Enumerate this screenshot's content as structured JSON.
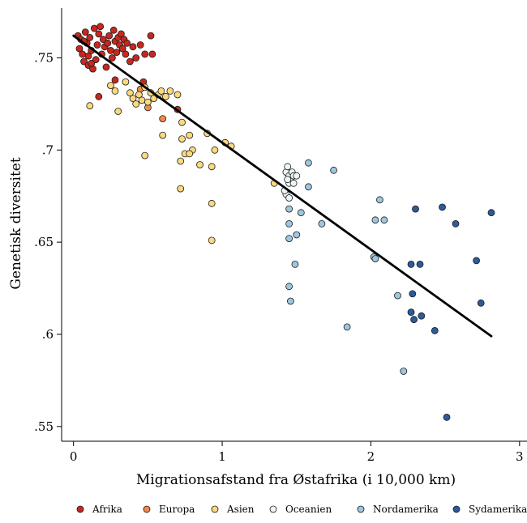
{
  "chart_data": {
    "type": "scatter",
    "title": "",
    "xlabel": "Migrationsafstand fra Østafrika (i 10,000 km)",
    "ylabel": "Genetisk diversitet",
    "xlim": [
      -0.08,
      3.05
    ],
    "ylim": [
      0.542,
      0.777
    ],
    "x_ticks": [
      0,
      1,
      2,
      3
    ],
    "x_tick_labels": [
      "0",
      "1",
      "2",
      "3"
    ],
    "y_ticks": [
      0.55,
      0.6,
      0.65,
      0.7,
      0.75
    ],
    "y_tick_labels": [
      ".55",
      ".6",
      ".65",
      ".7",
      ".75"
    ],
    "grid": false,
    "legend_position": "bottom",
    "series": [
      {
        "name": "Afrika",
        "color": "#c8271f",
        "points": [
          [
            0.03,
            0.762
          ],
          [
            0.04,
            0.755
          ],
          [
            0.05,
            0.76
          ],
          [
            0.06,
            0.752
          ],
          [
            0.07,
            0.748
          ],
          [
            0.08,
            0.764
          ],
          [
            0.09,
            0.758
          ],
          [
            0.1,
            0.746
          ],
          [
            0.11,
            0.761
          ],
          [
            0.12,
            0.754
          ],
          [
            0.13,
            0.744
          ],
          [
            0.14,
            0.766
          ],
          [
            0.15,
            0.749
          ],
          [
            0.16,
            0.757
          ],
          [
            0.17,
            0.763
          ],
          [
            0.18,
            0.767
          ],
          [
            0.19,
            0.752
          ],
          [
            0.2,
            0.76
          ],
          [
            0.21,
            0.756
          ],
          [
            0.22,
            0.745
          ],
          [
            0.23,
            0.758
          ],
          [
            0.24,
            0.762
          ],
          [
            0.25,
            0.754
          ],
          [
            0.26,
            0.75
          ],
          [
            0.27,
            0.765
          ],
          [
            0.28,
            0.759
          ],
          [
            0.29,
            0.753
          ],
          [
            0.3,
            0.761
          ],
          [
            0.31,
            0.757
          ],
          [
            0.32,
            0.763
          ],
          [
            0.33,
            0.755
          ],
          [
            0.34,
            0.76
          ],
          [
            0.35,
            0.752
          ],
          [
            0.36,
            0.758
          ],
          [
            0.38,
            0.748
          ],
          [
            0.4,
            0.756
          ],
          [
            0.42,
            0.75
          ],
          [
            0.45,
            0.757
          ],
          [
            0.48,
            0.752
          ],
          [
            0.52,
            0.762
          ],
          [
            0.53,
            0.752
          ],
          [
            0.1,
            0.751
          ],
          [
            0.12,
            0.747
          ],
          [
            0.07,
            0.759
          ],
          [
            0.17,
            0.729
          ],
          [
            0.28,
            0.738
          ],
          [
            0.47,
            0.737
          ],
          [
            0.7,
            0.722
          ]
        ]
      },
      {
        "name": "Europa",
        "color": "#ef8a4b",
        "points": [
          [
            0.5,
            0.723
          ],
          [
            0.6,
            0.717
          ],
          [
            0.45,
            0.733
          ]
        ]
      },
      {
        "name": "Asien",
        "color": "#fbd97e",
        "points": [
          [
            0.11,
            0.724
          ],
          [
            0.25,
            0.735
          ],
          [
            0.28,
            0.732
          ],
          [
            0.3,
            0.721
          ],
          [
            0.35,
            0.737
          ],
          [
            0.38,
            0.731
          ],
          [
            0.4,
            0.728
          ],
          [
            0.42,
            0.725
          ],
          [
            0.44,
            0.73
          ],
          [
            0.46,
            0.727
          ],
          [
            0.48,
            0.734
          ],
          [
            0.5,
            0.726
          ],
          [
            0.52,
            0.731
          ],
          [
            0.54,
            0.728
          ],
          [
            0.57,
            0.73
          ],
          [
            0.59,
            0.732
          ],
          [
            0.62,
            0.729
          ],
          [
            0.65,
            0.732
          ],
          [
            0.7,
            0.73
          ],
          [
            0.73,
            0.715
          ],
          [
            0.6,
            0.708
          ],
          [
            0.73,
            0.706
          ],
          [
            0.75,
            0.698
          ],
          [
            0.78,
            0.708
          ],
          [
            0.8,
            0.7
          ],
          [
            0.85,
            0.692
          ],
          [
            0.9,
            0.709
          ],
          [
            0.95,
            0.7
          ],
          [
            1.02,
            0.704
          ],
          [
            1.06,
            0.702
          ],
          [
            0.72,
            0.694
          ],
          [
            0.78,
            0.698
          ],
          [
            0.48,
            0.697
          ],
          [
            0.72,
            0.679
          ],
          [
            0.93,
            0.691
          ],
          [
            0.93,
            0.671
          ],
          [
            0.93,
            0.651
          ],
          [
            1.35,
            0.682
          ]
        ]
      },
      {
        "name": "Oceanien",
        "color": "#eef5f6",
        "points": [
          [
            1.43,
            0.688
          ],
          [
            1.44,
            0.691
          ],
          [
            1.45,
            0.686
          ],
          [
            1.46,
            0.683
          ],
          [
            1.47,
            0.688
          ],
          [
            1.45,
            0.682
          ],
          [
            1.44,
            0.684
          ],
          [
            1.48,
            0.686
          ],
          [
            1.5,
            0.686
          ],
          [
            1.48,
            0.682
          ],
          [
            1.43,
            0.676
          ],
          [
            1.45,
            0.674
          ],
          [
            1.42,
            0.678
          ]
        ]
      },
      {
        "name": "Nordamerika",
        "color": "#9fc6df",
        "points": [
          [
            1.45,
            0.668
          ],
          [
            1.45,
            0.66
          ],
          [
            1.45,
            0.652
          ],
          [
            1.5,
            0.654
          ],
          [
            1.53,
            0.666
          ],
          [
            1.58,
            0.68
          ],
          [
            1.58,
            0.693
          ],
          [
            1.67,
            0.66
          ],
          [
            1.75,
            0.689
          ],
          [
            1.49,
            0.638
          ],
          [
            1.45,
            0.626
          ],
          [
            1.46,
            0.618
          ],
          [
            1.84,
            0.604
          ],
          [
            2.02,
            0.642
          ],
          [
            2.03,
            0.641
          ],
          [
            2.03,
            0.662
          ],
          [
            2.06,
            0.673
          ],
          [
            2.09,
            0.662
          ],
          [
            2.18,
            0.621
          ],
          [
            2.22,
            0.58
          ]
        ]
      },
      {
        "name": "Sydamerika",
        "color": "#2d5a9b",
        "points": [
          [
            2.27,
            0.638
          ],
          [
            2.3,
            0.668
          ],
          [
            2.33,
            0.638
          ],
          [
            2.28,
            0.622
          ],
          [
            2.27,
            0.612
          ],
          [
            2.29,
            0.608
          ],
          [
            2.34,
            0.61
          ],
          [
            2.43,
            0.602
          ],
          [
            2.48,
            0.669
          ],
          [
            2.57,
            0.66
          ],
          [
            2.71,
            0.64
          ],
          [
            2.74,
            0.617
          ],
          [
            2.81,
            0.666
          ],
          [
            2.51,
            0.555
          ]
        ]
      }
    ],
    "fit_line": {
      "x": [
        0.0,
        2.81
      ],
      "y": [
        0.762,
        0.599
      ]
    }
  }
}
